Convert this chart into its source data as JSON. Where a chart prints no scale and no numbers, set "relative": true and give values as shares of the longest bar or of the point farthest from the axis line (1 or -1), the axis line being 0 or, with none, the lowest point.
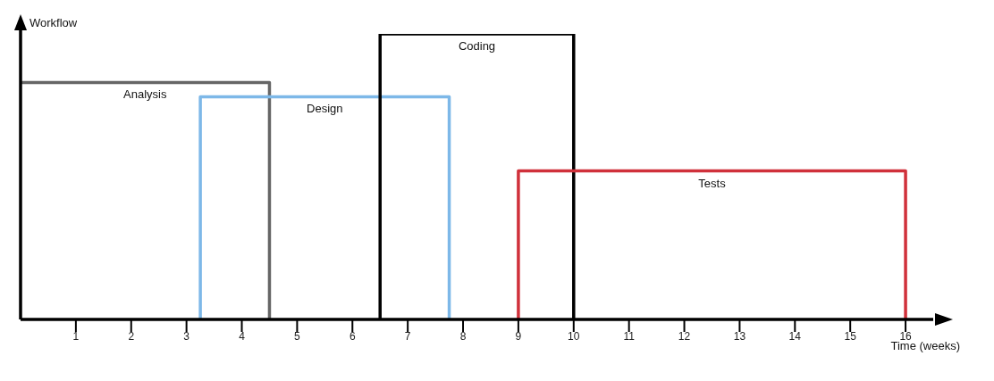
{
  "chart_data": {
    "type": "line",
    "relative": true,
    "xlabel": "Time (weeks)",
    "ylabel": "Workflow",
    "xlim": [
      0,
      16.5
    ],
    "xticks": [
      1,
      2,
      3,
      4,
      5,
      6,
      7,
      8,
      9,
      10,
      11,
      12,
      13,
      14,
      15,
      16
    ],
    "grid": false,
    "legend": false,
    "marker": "none",
    "line_style": "solid",
    "series": [
      {
        "name": "Analysis",
        "color": "#666666",
        "x": [
          0,
          4.5,
          4.5
        ],
        "values": [
          0.83,
          0.83,
          0
        ]
      },
      {
        "name": "Design",
        "color": "#7db8e8",
        "x": [
          3.25,
          3.25,
          7.75,
          7.75
        ],
        "values": [
          0,
          0.78,
          0.78,
          0
        ]
      },
      {
        "name": "Coding",
        "color": "#000000",
        "x": [
          6.5,
          6.5,
          10,
          10
        ],
        "values": [
          0,
          1,
          1,
          0
        ]
      },
      {
        "name": "Tests",
        "color": "#d0313b",
        "x": [
          9,
          9,
          16,
          16
        ],
        "values": [
          0,
          0.52,
          0.52,
          0
        ]
      }
    ]
  }
}
